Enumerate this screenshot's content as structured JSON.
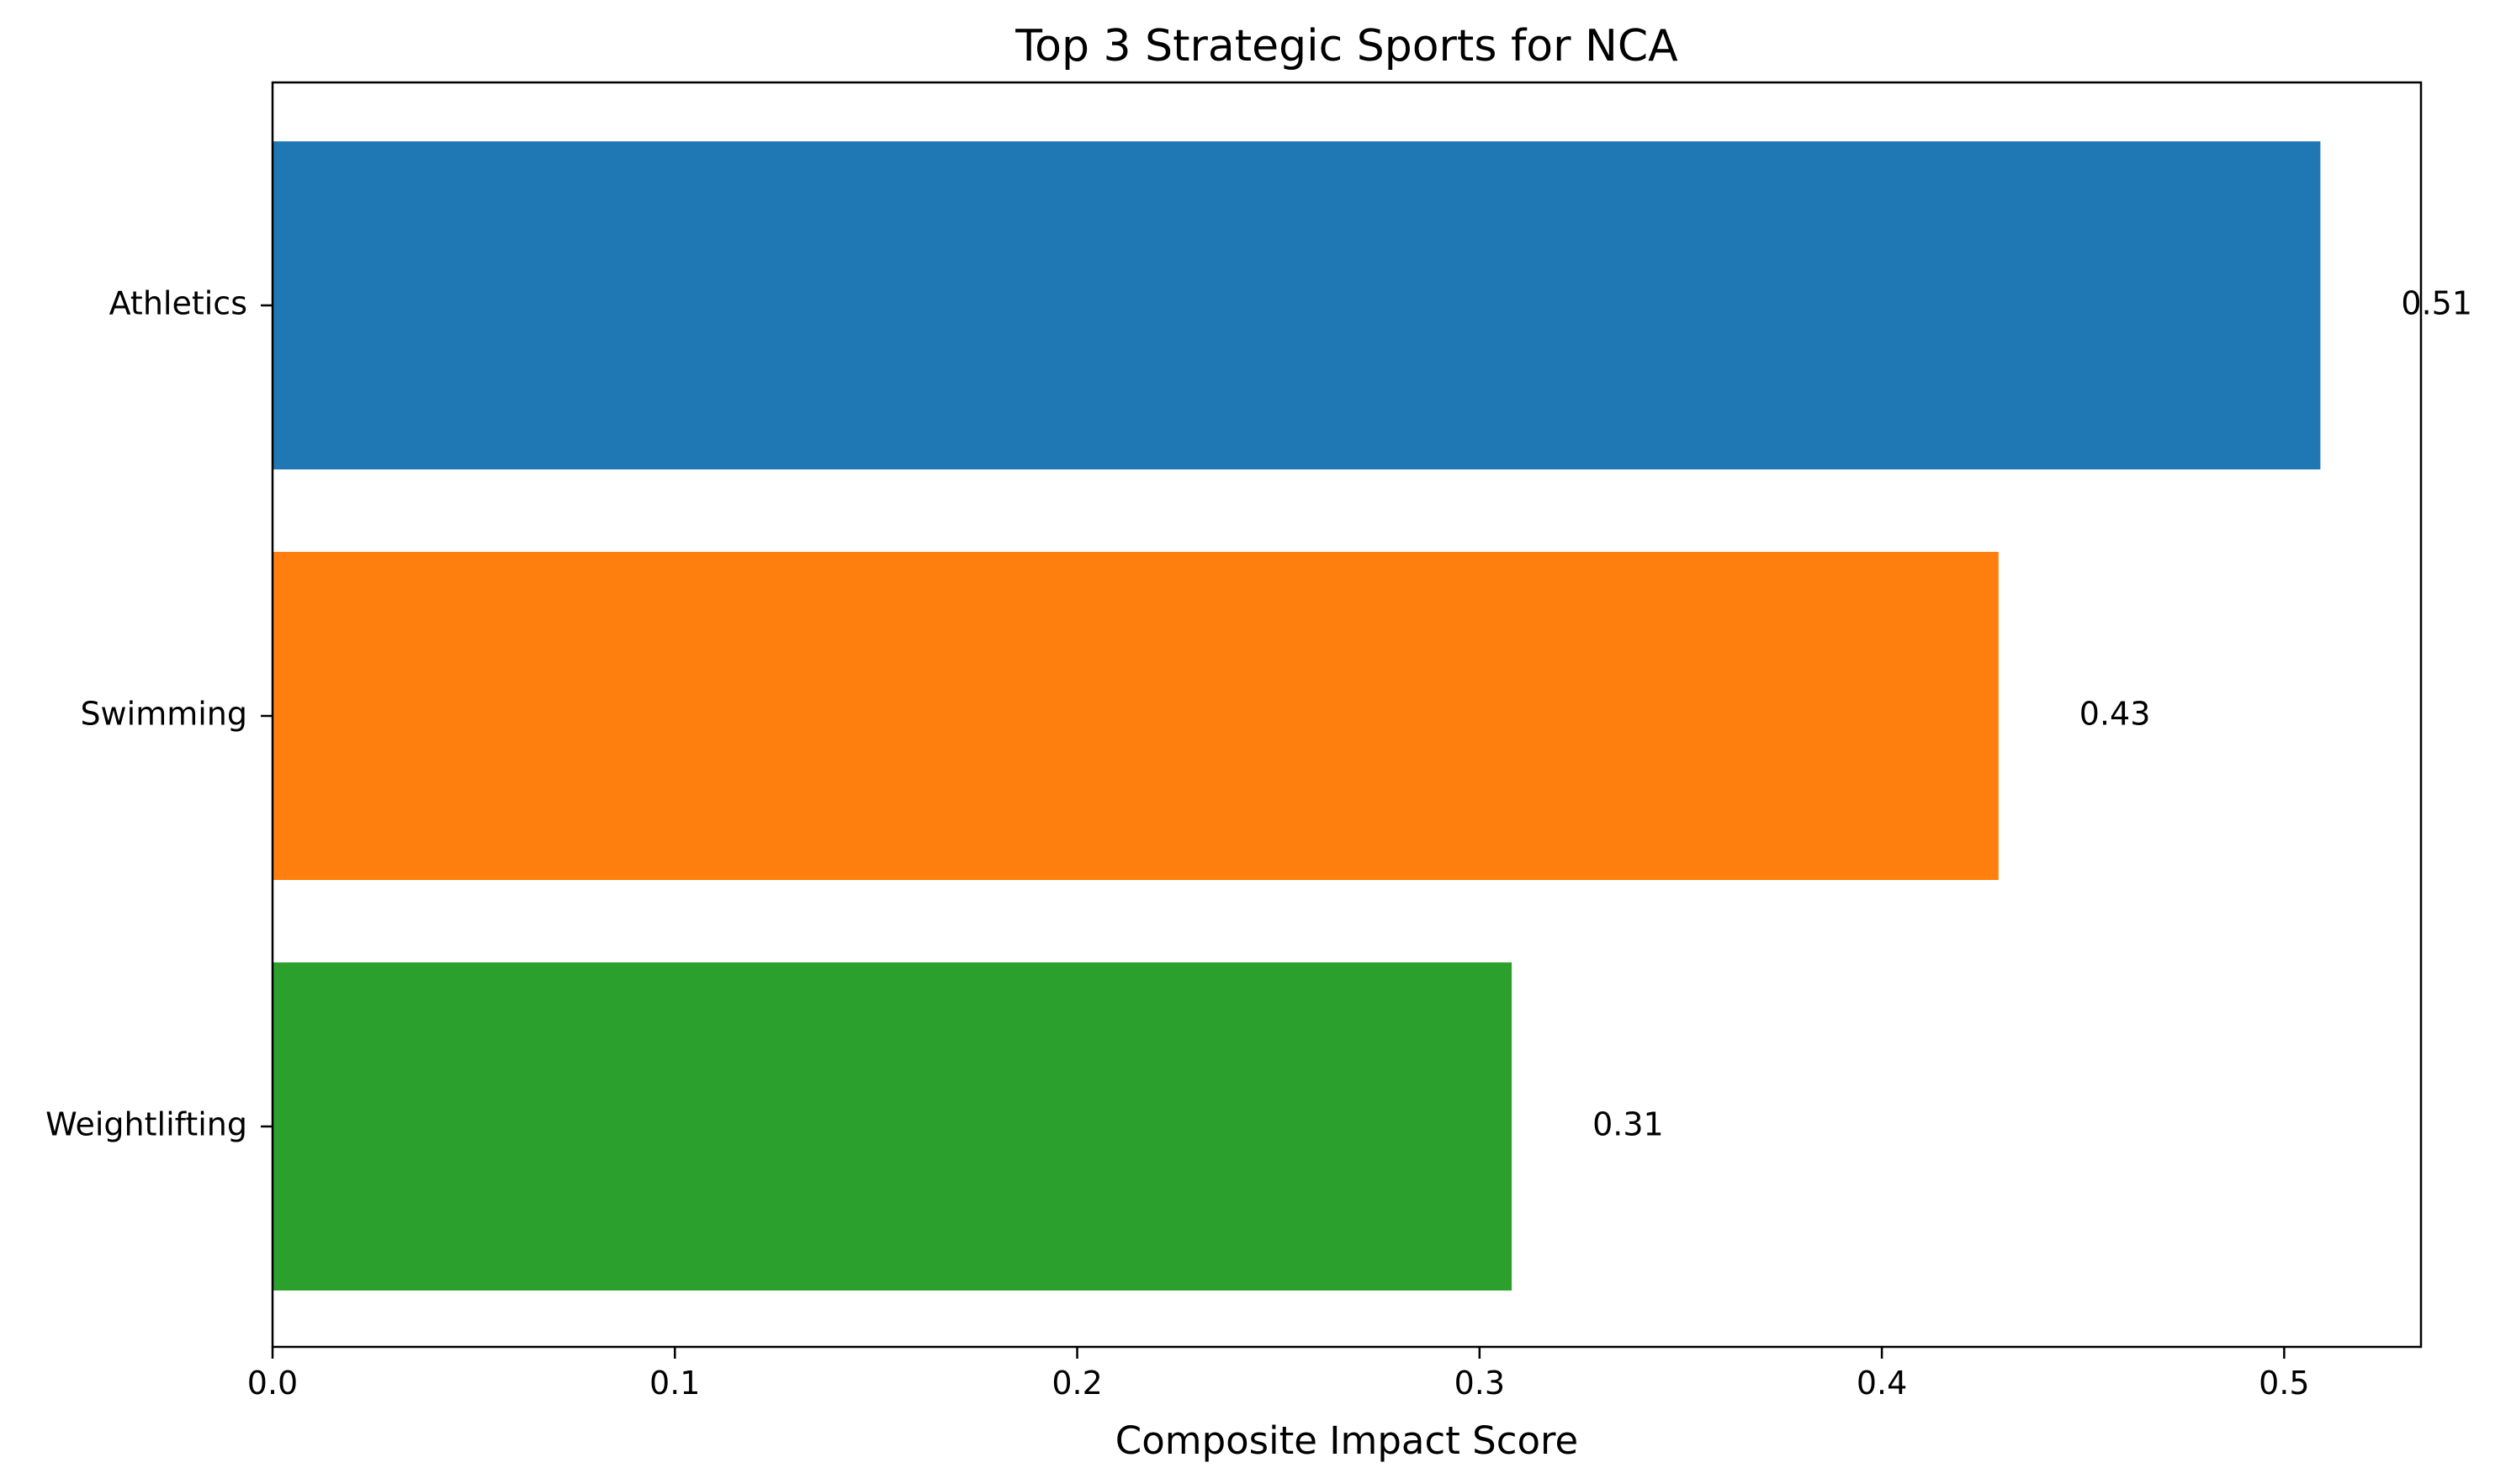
{
  "chart_data": {
    "type": "bar",
    "orientation": "horizontal",
    "title": "Top 3 Strategic Sports for NCA",
    "xlabel": "Composite Impact Score",
    "ylabel": "",
    "xlim": [
      0,
      0.534
    ],
    "xticks": [
      0.0,
      0.1,
      0.2,
      0.3,
      0.4,
      0.5
    ],
    "xtick_labels": [
      "0.0",
      "0.1",
      "0.2",
      "0.3",
      "0.4",
      "0.5"
    ],
    "categories": [
      "Athletics",
      "Swimming",
      "Weightlifting"
    ],
    "values": [
      0.509,
      0.429,
      0.308
    ],
    "value_labels": [
      "0.51",
      "0.43",
      "0.31"
    ],
    "colors": [
      "#1f77b4",
      "#ff7f0e",
      "#2ca02c"
    ],
    "grid": false,
    "legend": "none"
  }
}
